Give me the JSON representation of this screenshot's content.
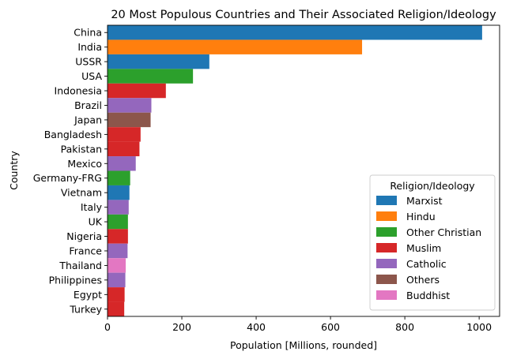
{
  "chart_data": {
    "type": "bar",
    "orientation": "horizontal",
    "title": "20 Most Populous Countries and Their Associated Religion/Ideology",
    "xlabel": "Population [Millions, rounded]",
    "ylabel": "Country",
    "xlim": [
      0,
      1055
    ],
    "xticks": [
      0,
      200,
      400,
      600,
      800,
      1000
    ],
    "grid": false,
    "legend_position": "bottom-right",
    "legend_title": "Religion/Ideology",
    "legend": [
      {
        "label": "Marxist",
        "color": "#1f77b4"
      },
      {
        "label": "Hindu",
        "color": "#ff7f0e"
      },
      {
        "label": "Other Christian",
        "color": "#2ca02c"
      },
      {
        "label": "Muslim",
        "color": "#d62728"
      },
      {
        "label": "Catholic",
        "color": "#9467bd"
      },
      {
        "label": "Others",
        "color": "#8c564b"
      },
      {
        "label": "Buddhist",
        "color": "#e377c2"
      }
    ],
    "categories": [
      "China",
      "India",
      "USSR",
      "USA",
      "Indonesia",
      "Brazil",
      "Japan",
      "Bangladesh",
      "Pakistan",
      "Mexico",
      "Germany-FRG",
      "Vietnam",
      "Italy",
      "UK",
      "Nigeria",
      "France",
      "Thailand",
      "Philippines",
      "Egypt",
      "Turkey"
    ],
    "values": [
      1008,
      685,
      274,
      230,
      157,
      118,
      116,
      89,
      86,
      76,
      61,
      59,
      57,
      55,
      55,
      54,
      49,
      48,
      46,
      45
    ],
    "religions": [
      "Marxist",
      "Hindu",
      "Marxist",
      "Other Christian",
      "Muslim",
      "Catholic",
      "Others",
      "Muslim",
      "Muslim",
      "Catholic",
      "Other Christian",
      "Marxist",
      "Catholic",
      "Other Christian",
      "Muslim",
      "Catholic",
      "Buddhist",
      "Catholic",
      "Muslim",
      "Muslim"
    ]
  }
}
